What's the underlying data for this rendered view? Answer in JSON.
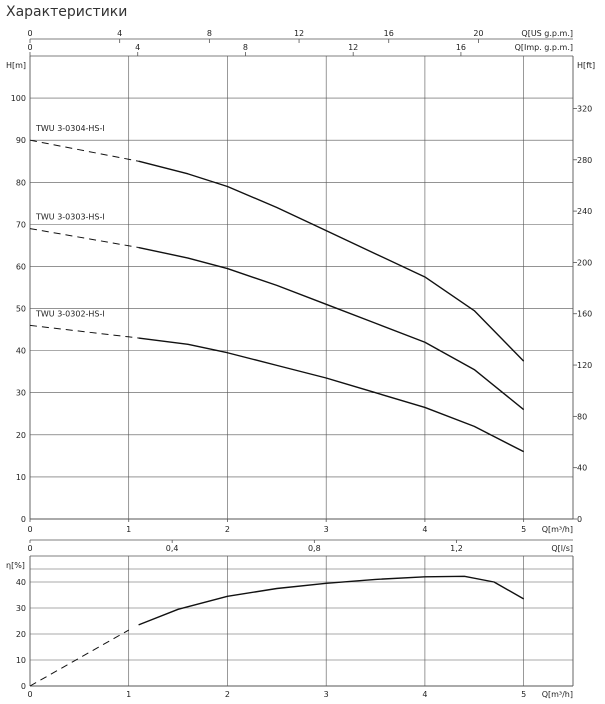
{
  "title": "Характеристики",
  "chart_data": [
    {
      "type": "line",
      "name_hint": "head-curves",
      "xlim": [
        0,
        5.5
      ],
      "ylim": [
        0,
        110
      ],
      "xlabel": "Q[m³/h]",
      "ylabel": "H[m]",
      "y2label": "H[ft]",
      "x_ticks": [
        0,
        1,
        2,
        3,
        4,
        5
      ],
      "y_ticks": [
        0,
        10,
        20,
        30,
        40,
        50,
        60,
        70,
        80,
        90,
        100
      ],
      "y2_ticks": [
        0,
        40,
        80,
        120,
        160,
        200,
        240,
        280,
        320
      ],
      "top_axis_us": {
        "label": "Q[US g.p.m.]",
        "ticks": [
          0,
          4,
          8,
          12,
          16,
          20
        ]
      },
      "top_axis_imp": {
        "label": "Q[Imp. g.p.m.]",
        "ticks": [
          0,
          4,
          8,
          12,
          16
        ]
      },
      "grid": true,
      "series": [
        {
          "name": "TWU 3-0304-HS-I",
          "points": [
            [
              1.1,
              85
            ],
            [
              1.6,
              82
            ],
            [
              2.0,
              79
            ],
            [
              2.5,
              74
            ],
            [
              3.0,
              68.5
            ],
            [
              3.5,
              63
            ],
            [
              4.0,
              57.5
            ],
            [
              4.5,
              49.5
            ],
            [
              5.0,
              37.5
            ]
          ],
          "dashed_points": [
            [
              0,
              90
            ],
            [
              1.1,
              85
            ]
          ]
        },
        {
          "name": "TWU 3-0303-HS-I",
          "points": [
            [
              1.1,
              64.5
            ],
            [
              1.6,
              62
            ],
            [
              2.0,
              59.5
            ],
            [
              2.5,
              55.5
            ],
            [
              3.0,
              51
            ],
            [
              3.5,
              46.5
            ],
            [
              4.0,
              42
            ],
            [
              4.5,
              35.5
            ],
            [
              5.0,
              26
            ]
          ],
          "dashed_points": [
            [
              0,
              69
            ],
            [
              1.1,
              64.5
            ]
          ]
        },
        {
          "name": "TWU 3-0302-HS-I",
          "points": [
            [
              1.1,
              43
            ],
            [
              1.6,
              41.5
            ],
            [
              2.0,
              39.5
            ],
            [
              2.5,
              36.5
            ],
            [
              3.0,
              33.5
            ],
            [
              3.5,
              30
            ],
            [
              4.0,
              26.5
            ],
            [
              4.5,
              22
            ],
            [
              5.0,
              16
            ]
          ],
          "dashed_points": [
            [
              0,
              46
            ],
            [
              1.1,
              43
            ]
          ]
        }
      ]
    },
    {
      "type": "line",
      "name_hint": "efficiency-curve",
      "xlim": [
        0,
        5.5
      ],
      "ylim": [
        0,
        50
      ],
      "xlabel": "Q[m³/h]",
      "ylabel": "η[%]",
      "x_ticks": [
        0,
        1,
        2,
        3,
        4,
        5
      ],
      "y_ticks": [
        0,
        10,
        20,
        30,
        40
      ],
      "top_axis_ls": {
        "label": "Q[l/s]",
        "ticks": [
          "0",
          "0,4",
          "0,8",
          "1,2"
        ],
        "tick_values": [
          0,
          0.4,
          0.8,
          1.2
        ]
      },
      "grid": true,
      "series": [
        {
          "name": "",
          "points": [
            [
              1.1,
              23.5
            ],
            [
              1.5,
              29.5
            ],
            [
              2.0,
              34.5
            ],
            [
              2.5,
              37.5
            ],
            [
              3.0,
              39.5
            ],
            [
              3.5,
              41
            ],
            [
              4.0,
              42
            ],
            [
              4.4,
              42.2
            ],
            [
              4.7,
              40
            ],
            [
              5.0,
              33.5
            ]
          ],
          "dashed_points": [
            [
              0,
              0
            ],
            [
              1.0,
              21.5
            ]
          ]
        }
      ]
    }
  ]
}
